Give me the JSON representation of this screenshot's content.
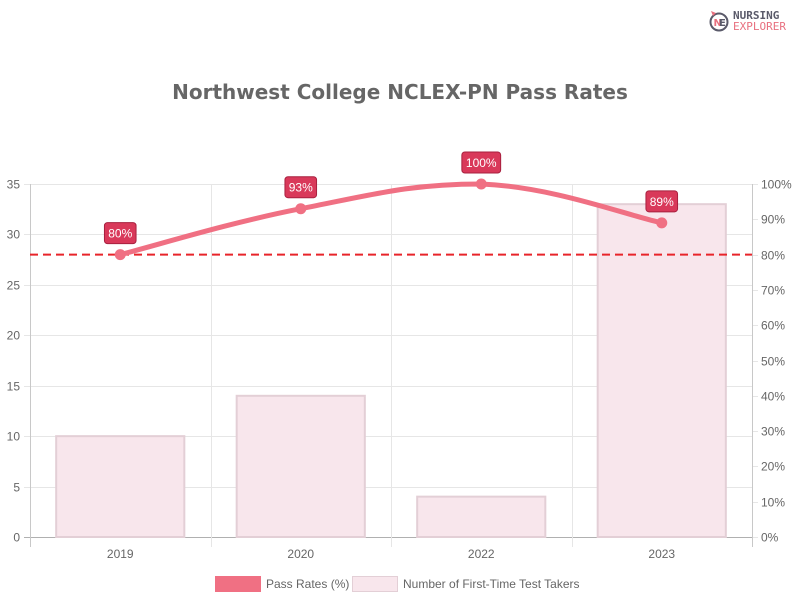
{
  "logo": {
    "line1": "NURSING",
    "line2": "EXPLORER",
    "icon": "nursing-explorer-logo-icon"
  },
  "title": "Northwest College NCLEX-PN Pass Rates",
  "colors": {
    "line": "#f07083",
    "label_bg": "#d9395a",
    "label_border": "#a8203f",
    "bar_fill": "#f8e6ec",
    "bar_border": "#e3cfd6",
    "threshold": "#e8242a",
    "grid": "#e6e6e6",
    "axis_text": "#666666"
  },
  "legend": [
    {
      "label": "Pass Rates (%)",
      "type": "line"
    },
    {
      "label": "Number of First-Time Test Takers",
      "type": "bar"
    }
  ],
  "chart_data": {
    "type": "bar+line",
    "title": "Northwest College NCLEX-PN Pass Rates",
    "categories": [
      "2019",
      "2020",
      "2022",
      "2023"
    ],
    "series": [
      {
        "name": "Number of First-Time Test Takers",
        "type": "bar",
        "axis": "left",
        "values": [
          10,
          14,
          4,
          33
        ]
      },
      {
        "name": "Pass Rates (%)",
        "type": "line",
        "axis": "right",
        "values": [
          80,
          93,
          100,
          89
        ],
        "labels": [
          "80%",
          "93%",
          "100%",
          "89%"
        ]
      }
    ],
    "annotations": [
      {
        "type": "horizontal-dashed-line",
        "axis": "right",
        "value": 80
      }
    ],
    "y_left": {
      "min": 0,
      "max": 35,
      "ticks": [
        "0",
        "5",
        "10",
        "15",
        "20",
        "25",
        "30",
        "35"
      ]
    },
    "y_right": {
      "min": 0,
      "max": 100,
      "ticks": [
        "0%",
        "10%",
        "20%",
        "30%",
        "40%",
        "50%",
        "60%",
        "70%",
        "80%",
        "90%",
        "100%"
      ]
    },
    "grid": true,
    "legend_position": "bottom"
  }
}
